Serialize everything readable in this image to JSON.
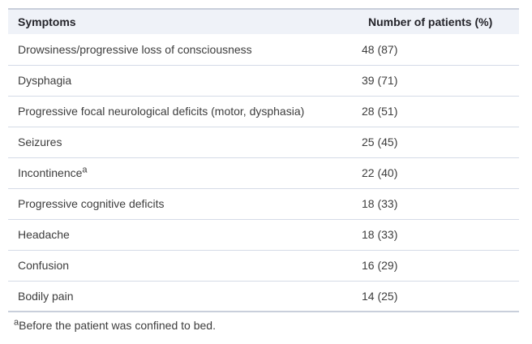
{
  "table": {
    "header": {
      "symptoms": "Symptoms",
      "patients": "Number of patients (%)"
    },
    "rows": [
      {
        "symptom": "Drowsiness/progressive loss of consciousness",
        "marker": "",
        "value": "48 (87)"
      },
      {
        "symptom": "Dysphagia",
        "marker": "",
        "value": "39 (71)"
      },
      {
        "symptom": "Progressive focal neurological deficits (motor, dysphasia)",
        "marker": "",
        "value": "28 (51)"
      },
      {
        "symptom": "Seizures",
        "marker": "",
        "value": "25 (45)"
      },
      {
        "symptom": "Incontinence",
        "marker": "a",
        "value": "22 (40)"
      },
      {
        "symptom": "Progressive cognitive deficits",
        "marker": "",
        "value": "18 (33)"
      },
      {
        "symptom": "Headache",
        "marker": "",
        "value": "18 (33)"
      },
      {
        "symptom": "Confusion",
        "marker": "",
        "value": "16 (29)"
      },
      {
        "symptom": "Bodily pain",
        "marker": "",
        "value": "14 (25)"
      }
    ],
    "footnote": {
      "marker": "a",
      "text": "Before the patient was confined to bed."
    }
  },
  "colors": {
    "header_background": "#eff2f8",
    "strong_rule": "#c9cfdb",
    "row_divider": "#d5dbe7",
    "header_text": "#24242a",
    "body_text": "#3d3d3d",
    "page_background": "#ffffff"
  }
}
